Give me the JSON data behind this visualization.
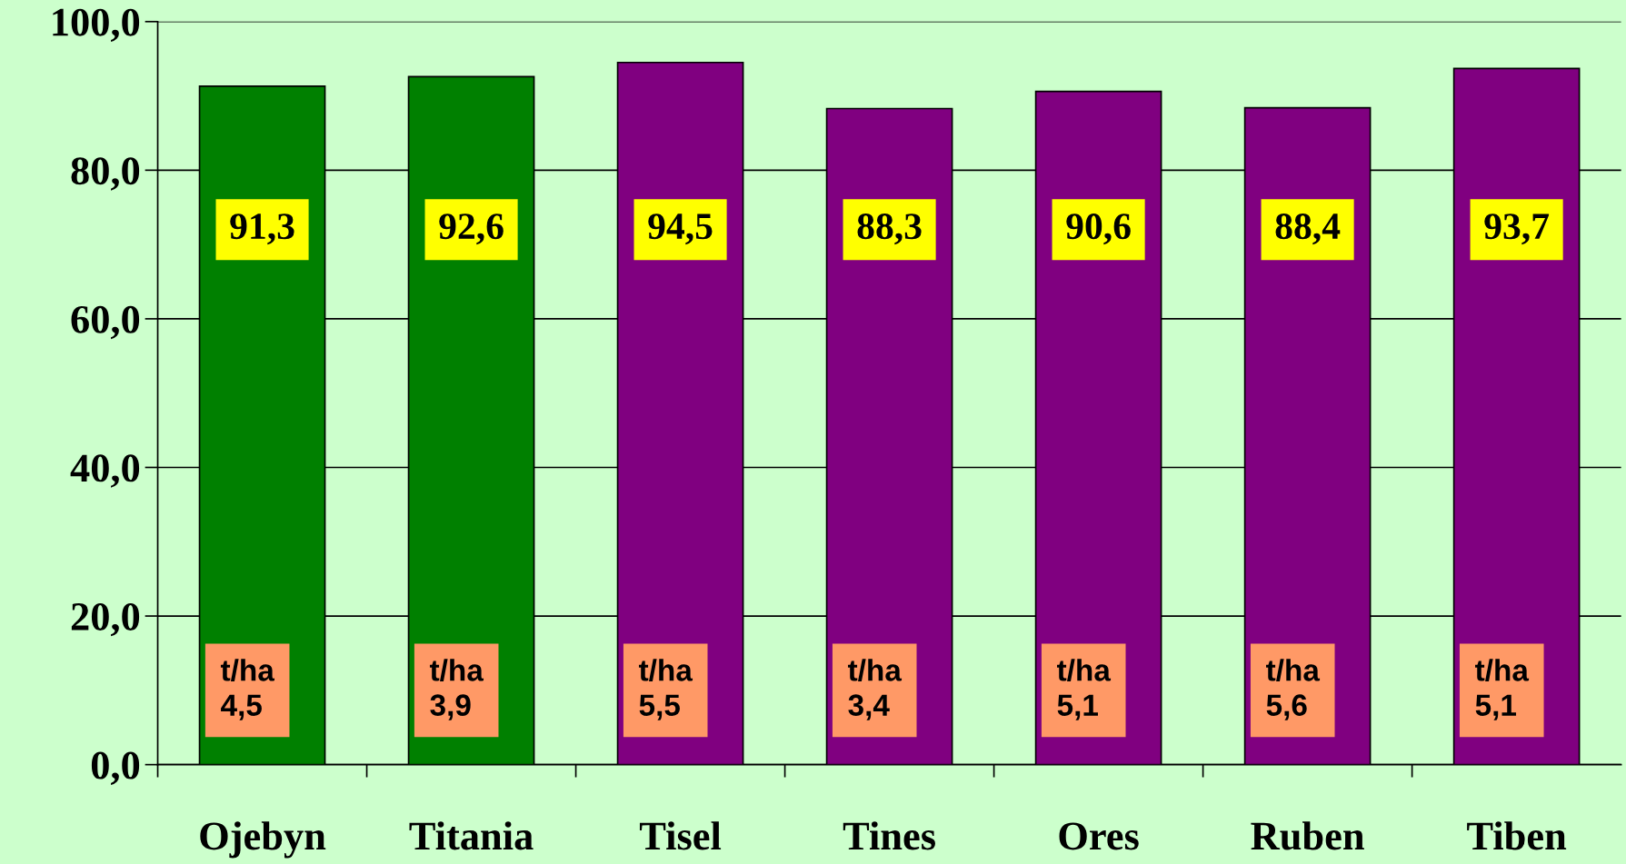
{
  "chart_data": {
    "type": "bar",
    "categories": [
      "Ojebyn",
      "Titania",
      "Tisel",
      "Tines",
      "Ores",
      "Ruben",
      "Tiben"
    ],
    "values": [
      91.3,
      92.6,
      94.5,
      88.3,
      90.6,
      88.4,
      93.7
    ],
    "colors": [
      "#008000",
      "#008000",
      "#800080",
      "#800080",
      "#800080",
      "#800080",
      "#800080"
    ],
    "value_labels": [
      "91,3",
      "92,6",
      "94,5",
      "88,3",
      "90,6",
      "88,4",
      "93,7"
    ],
    "ylim": [
      0,
      100
    ],
    "yticks": [
      {
        "value": 0,
        "label": "0,0"
      },
      {
        "value": 20,
        "label": "20,0"
      },
      {
        "value": 40,
        "label": "40,0"
      },
      {
        "value": 60,
        "label": "60,0"
      },
      {
        "value": 80,
        "label": "80,0"
      },
      {
        "value": 100,
        "label": "100,0"
      }
    ],
    "grid": "y",
    "annotations": [
      "t/ha\n4,5",
      "t/ha\n3,9",
      "t/ha\n5,5",
      "t/ha\n3,4",
      "t/ha\n5,1",
      "t/ha\n5,6",
      "t/ha\n5,1"
    ]
  }
}
